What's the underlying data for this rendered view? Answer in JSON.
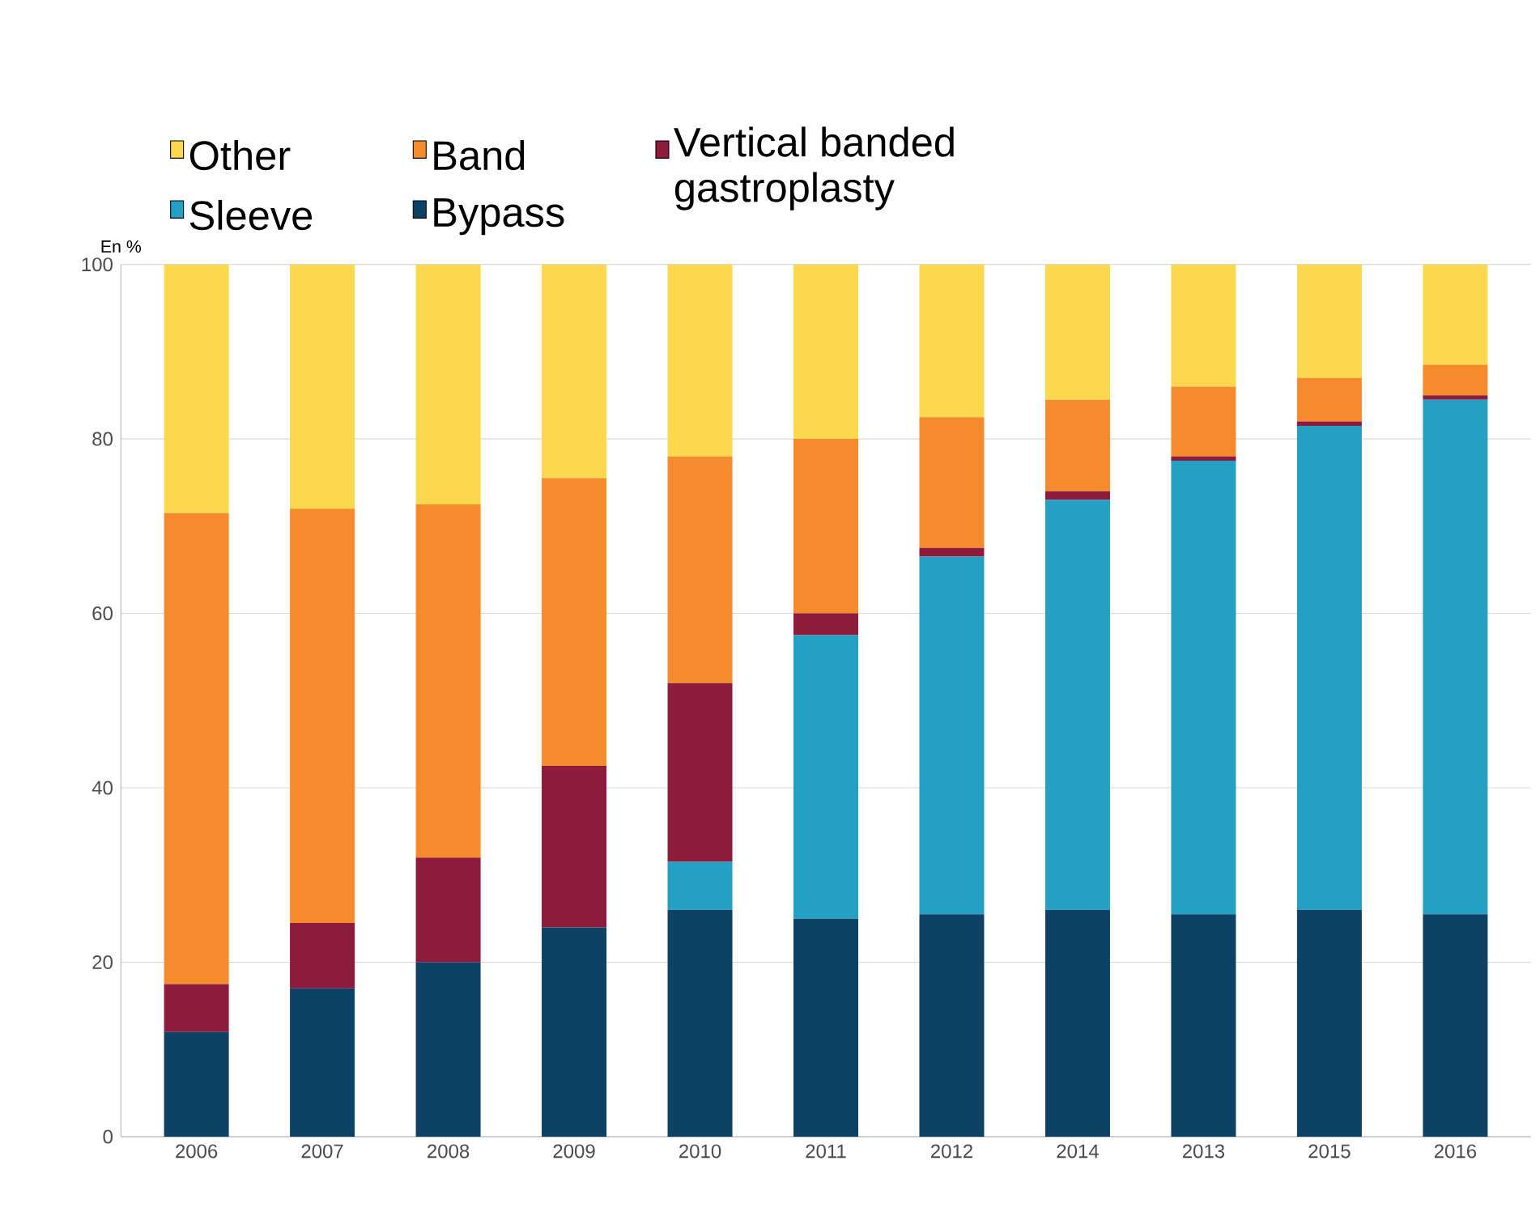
{
  "chart_data": {
    "type": "bar",
    "stacked": true,
    "ylabel": "En %",
    "categories": [
      "2006",
      "2007",
      "2008",
      "2009",
      "2010",
      "2011",
      "2012",
      "2014",
      "2013",
      "2015",
      "2016"
    ],
    "series": [
      {
        "name": "Bypass",
        "color": "#0e4166",
        "values": [
          12,
          17,
          20,
          24,
          26,
          25,
          25.5,
          26,
          25.5,
          26,
          25.5
        ]
      },
      {
        "name": "Sleeve",
        "color": "#25a0c5",
        "values": [
          0,
          0,
          0,
          0,
          5.5,
          32.5,
          41,
          47,
          52,
          55.5,
          59
        ]
      },
      {
        "name": "Vertical banded gastroplasty",
        "color": "#8e1b3b",
        "values": [
          5.5,
          7.5,
          12,
          18.5,
          20.5,
          2.5,
          1,
          1,
          0.5,
          0.5,
          0.5
        ]
      },
      {
        "name": "Band",
        "color": "#f58b2c",
        "values": [
          54,
          47.5,
          40.5,
          33,
          26,
          20,
          15,
          10.5,
          8,
          5,
          3.5
        ]
      },
      {
        "name": "Other",
        "color": "#fcd94c",
        "values": [
          28.5,
          28,
          27.5,
          24.5,
          22,
          20,
          17.5,
          15.5,
          14,
          13,
          11.5
        ]
      }
    ],
    "ylim": [
      0,
      100
    ],
    "yticks": [
      0,
      20,
      40,
      60,
      80,
      100
    ],
    "grid": "y",
    "legend": "top"
  }
}
